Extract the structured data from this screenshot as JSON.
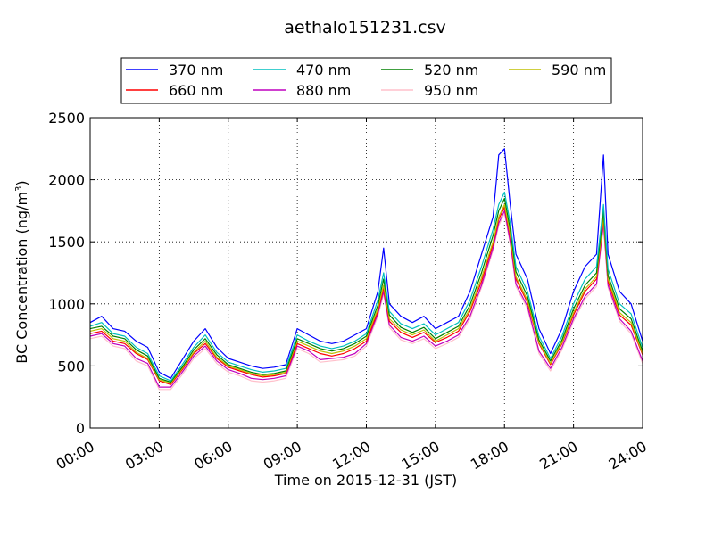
{
  "chart_data": {
    "type": "line",
    "title": "aethalo151231.csv",
    "xlabel": "Time on 2015-12-31 (JST)",
    "ylabel_main": "BC Concentration (ng/m",
    "ylabel_sup": "3",
    "ylabel_close": ")",
    "xlim_hours": [
      0,
      24
    ],
    "ylim": [
      0,
      2500
    ],
    "x_ticks_hours": [
      0,
      3,
      6,
      9,
      12,
      15,
      18,
      21,
      24
    ],
    "x_tick_labels": [
      "00:00",
      "03:00",
      "06:00",
      "09:00",
      "12:00",
      "15:00",
      "18:00",
      "21:00",
      "24:00"
    ],
    "y_ticks": [
      0,
      500,
      1000,
      1500,
      2000,
      2500
    ],
    "y_tick_labels": [
      "0",
      "500",
      "1000",
      "1500",
      "2000",
      "2500"
    ],
    "grid": true,
    "legend_position": "top",
    "x_hours": [
      0,
      0.5,
      1,
      1.5,
      2,
      2.5,
      3,
      3.5,
      4,
      4.5,
      5,
      5.5,
      6,
      6.5,
      7,
      7.5,
      8,
      8.5,
      9,
      9.5,
      10,
      10.5,
      11,
      11.5,
      12,
      12.5,
      12.75,
      13,
      13.5,
      14,
      14.5,
      15,
      15.5,
      16,
      16.5,
      17,
      17.5,
      17.75,
      18,
      18.25,
      18.5,
      19,
      19.5,
      20,
      20.5,
      21,
      21.5,
      22,
      22.3,
      22.5,
      23,
      23.5,
      24
    ],
    "series": [
      {
        "name": "370 nm",
        "color": "#0000ff",
        "values": [
          850,
          900,
          800,
          780,
          700,
          650,
          450,
          400,
          550,
          700,
          800,
          650,
          560,
          530,
          500,
          480,
          490,
          510,
          800,
          750,
          700,
          680,
          700,
          750,
          800,
          1100,
          1450,
          1000,
          900,
          850,
          900,
          800,
          850,
          900,
          1100,
          1400,
          1700,
          2200,
          2250,
          1800,
          1400,
          1200,
          800,
          600,
          800,
          1100,
          1300,
          1400,
          2200,
          1400,
          1100,
          1000,
          700
        ]
      },
      {
        "name": "470 nm",
        "color": "#00bfbf",
        "values": [
          820,
          850,
          760,
          740,
          650,
          600,
          420,
          380,
          510,
          650,
          750,
          610,
          530,
          500,
          470,
          450,
          460,
          480,
          750,
          700,
          660,
          640,
          660,
          700,
          760,
          1030,
          1250,
          940,
          840,
          800,
          840,
          750,
          800,
          850,
          1030,
          1300,
          1600,
          1800,
          1900,
          1650,
          1300,
          1100,
          740,
          560,
          740,
          1000,
          1200,
          1300,
          1800,
          1280,
          1000,
          920,
          650
        ]
      },
      {
        "name": "520 nm",
        "color": "#008000",
        "values": [
          800,
          820,
          740,
          720,
          630,
          580,
          400,
          370,
          490,
          630,
          720,
          590,
          510,
          480,
          450,
          430,
          440,
          460,
          720,
          680,
          640,
          620,
          640,
          680,
          740,
          990,
          1200,
          910,
          810,
          770,
          810,
          720,
          770,
          820,
          990,
          1250,
          1550,
          1750,
          1850,
          1600,
          1260,
          1060,
          710,
          540,
          710,
          960,
          1150,
          1250,
          1750,
          1230,
          960,
          880,
          620
        ]
      },
      {
        "name": "590 nm",
        "color": "#bfbf00",
        "values": [
          780,
          800,
          720,
          700,
          610,
          560,
          390,
          360,
          480,
          610,
          700,
          570,
          500,
          470,
          440,
          420,
          430,
          450,
          700,
          660,
          620,
          600,
          620,
          660,
          720,
          960,
          1150,
          880,
          790,
          750,
          790,
          700,
          750,
          800,
          960,
          1210,
          1500,
          1700,
          1800,
          1560,
          1220,
          1030,
          690,
          520,
          690,
          930,
          1120,
          1220,
          1700,
          1200,
          930,
          850,
          600
        ]
      },
      {
        "name": "660 nm",
        "color": "#ff0000",
        "values": [
          760,
          780,
          700,
          680,
          600,
          550,
          380,
          350,
          470,
          600,
          680,
          560,
          490,
          460,
          430,
          410,
          420,
          440,
          680,
          640,
          600,
          580,
          600,
          640,
          700,
          940,
          1130,
          860,
          770,
          730,
          770,
          690,
          730,
          780,
          940,
          1180,
          1480,
          1680,
          1780,
          1540,
          1200,
          1010,
          680,
          510,
          680,
          910,
          1100,
          1200,
          1680,
          1180,
          910,
          830,
          590
        ]
      },
      {
        "name": "880 nm",
        "color": "#bf00bf",
        "values": [
          740,
          760,
          680,
          660,
          560,
          520,
          330,
          330,
          450,
          580,
          660,
          540,
          470,
          440,
          400,
          390,
          400,
          420,
          660,
          620,
          550,
          560,
          570,
          600,
          680,
          920,
          1100,
          830,
          730,
          700,
          740,
          660,
          700,
          750,
          900,
          1150,
          1450,
          1650,
          1750,
          1500,
          1160,
          980,
          620,
          480,
          650,
          880,
          1060,
          1160,
          1650,
          1150,
          880,
          780,
          540
        ]
      },
      {
        "name": "950 nm",
        "color": "#ffc0cb",
        "values": [
          720,
          740,
          660,
          640,
          540,
          500,
          310,
          310,
          430,
          560,
          640,
          520,
          450,
          420,
          380,
          370,
          380,
          400,
          640,
          600,
          530,
          540,
          550,
          580,
          660,
          900,
          1080,
          810,
          710,
          680,
          720,
          640,
          680,
          730,
          880,
          1130,
          1430,
          1630,
          1730,
          1480,
          1140,
          960,
          600,
          460,
          630,
          860,
          1040,
          1140,
          1630,
          1130,
          860,
          760,
          520
        ]
      }
    ]
  }
}
